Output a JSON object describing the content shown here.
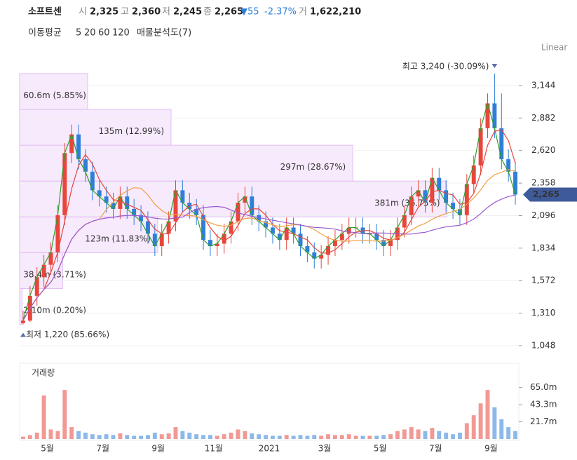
{
  "header": {
    "name": "소프트센",
    "items": [
      {
        "label": "시",
        "value": "2,325"
      },
      {
        "label": "고",
        "value": "2,360"
      },
      {
        "label": "저",
        "value": "2,245"
      },
      {
        "label": "종",
        "value": "2,265"
      }
    ],
    "change": "▼55",
    "change_pct": "-2.37%",
    "volume_label": "거",
    "volume_value": "1,622,210",
    "indicator_label": "이동평균",
    "profile_label": "매물분석도(7)",
    "scale_label": "Linear"
  },
  "chart_data": {
    "type": "candlestick",
    "categories": [
      null,
      null,
      null,
      null,
      "5월",
      null,
      null,
      null,
      null,
      null,
      null,
      null,
      "7월",
      null,
      null,
      null,
      null,
      null,
      null,
      null,
      "9월",
      null,
      null,
      null,
      null,
      null,
      null,
      null,
      "11월",
      null,
      null,
      null,
      null,
      null,
      null,
      null,
      "2021",
      null,
      null,
      null,
      null,
      null,
      null,
      null,
      "3월",
      null,
      null,
      null,
      null,
      null,
      null,
      null,
      "5월",
      null,
      null,
      null,
      null,
      null,
      null,
      null,
      "7월",
      null,
      null,
      null,
      null,
      null,
      null,
      null,
      "9월",
      null,
      null,
      null
    ],
    "open": [
      1230,
      1250,
      1450,
      1600,
      1700,
      1800,
      2100,
      2600,
      2750,
      2550,
      2450,
      2300,
      2250,
      2200,
      2150,
      2250,
      2150,
      2100,
      2050,
      1950,
      1850,
      1950,
      2050,
      2300,
      2200,
      2150,
      2100,
      1900,
      1850,
      1870,
      1950,
      2050,
      2200,
      2250,
      2100,
      2050,
      2000,
      1950,
      1900,
      2000,
      1950,
      1850,
      1800,
      1750,
      1780,
      1850,
      1900,
      1950,
      2000,
      2000,
      1950,
      1950,
      1900,
      1850,
      1900,
      2000,
      2100,
      2250,
      2300,
      2200,
      2400,
      2300,
      2200,
      2150,
      2100,
      2350,
      2500,
      2800,
      3000,
      2800,
      2550,
      2450
    ],
    "high": [
      1330,
      1530,
      1680,
      1780,
      1880,
      2180,
      2680,
      2830,
      2830,
      2630,
      2530,
      2380,
      2330,
      2280,
      2330,
      2330,
      2230,
      2180,
      2130,
      2030,
      2030,
      2130,
      2380,
      2380,
      2280,
      2230,
      2180,
      1980,
      1950,
      2030,
      2130,
      2280,
      2330,
      2330,
      2180,
      2130,
      2080,
      2030,
      2080,
      2080,
      2030,
      1930,
      1880,
      1860,
      1930,
      1980,
      2030,
      2080,
      2080,
      2080,
      2030,
      2030,
      1980,
      1980,
      2080,
      2180,
      2330,
      2380,
      2380,
      2480,
      2480,
      2380,
      2280,
      2230,
      2430,
      2580,
      2880,
      3080,
      3240,
      3080,
      2630,
      2530
    ],
    "low": [
      1220,
      1240,
      1370,
      1520,
      1620,
      1720,
      2020,
      2520,
      2470,
      2370,
      2220,
      2170,
      2120,
      2070,
      2070,
      2070,
      2020,
      1970,
      1870,
      1770,
      1770,
      1870,
      1970,
      2120,
      2070,
      2020,
      1820,
      1770,
      1770,
      1790,
      1870,
      1970,
      2120,
      2020,
      1970,
      1920,
      1870,
      1820,
      1820,
      1870,
      1770,
      1720,
      1670,
      1670,
      1700,
      1770,
      1820,
      1870,
      1920,
      1870,
      1870,
      1820,
      1770,
      1770,
      1820,
      1920,
      2020,
      2170,
      2120,
      2120,
      2220,
      2120,
      2070,
      2020,
      2020,
      2270,
      2420,
      2720,
      2720,
      2470,
      2370,
      2185
    ],
    "close": [
      1250,
      1450,
      1600,
      1700,
      1800,
      2100,
      2600,
      2750,
      2550,
      2450,
      2300,
      2250,
      2200,
      2150,
      2250,
      2150,
      2100,
      2050,
      1950,
      1850,
      1950,
      2050,
      2300,
      2200,
      2150,
      2100,
      1900,
      1850,
      1870,
      1950,
      2050,
      2200,
      2250,
      2100,
      2050,
      2000,
      1950,
      1900,
      2000,
      1950,
      1850,
      1800,
      1750,
      1780,
      1850,
      1900,
      1950,
      2000,
      2000,
      1950,
      1950,
      1900,
      1850,
      1900,
      2000,
      2100,
      2250,
      2300,
      2200,
      2400,
      2300,
      2200,
      2150,
      2100,
      2350,
      2500,
      2800,
      3000,
      2800,
      2550,
      2450,
      2265
    ],
    "up_color": "#e8453c",
    "down_color": "#2f7fd8",
    "ylim": [
      952,
      3268
    ],
    "yticks": [
      {
        "value": 1048,
        "label": "1,048"
      },
      {
        "value": 1310,
        "label": "1,310"
      },
      {
        "value": 1572,
        "label": "1,572"
      },
      {
        "value": 1834,
        "label": "1,834"
      },
      {
        "value": 2096,
        "label": "2,096"
      },
      {
        "value": 2358,
        "label": "2,358"
      },
      {
        "value": 2620,
        "label": "2,620"
      },
      {
        "value": 2882,
        "label": "2,882"
      },
      {
        "value": 3144,
        "label": "3,144"
      }
    ],
    "grid": true,
    "last_label": "2,265",
    "high_annotation": "최고 3,240 (-30.09%)",
    "low_annotation": "최저 1,220 (85.66%)",
    "moving_averages": [
      {
        "period": 5,
        "color": "#2ca02c"
      },
      {
        "period": 20,
        "color": "#e8453c"
      },
      {
        "period": 60,
        "color": "#f0a040"
      },
      {
        "period": 120,
        "color": "#9b59d0"
      }
    ],
    "profile": {
      "bins": [
        1220,
        1508.6,
        1797.1,
        2085.7,
        2374.3,
        2662.9,
        2951.4,
        3240
      ],
      "values": [
        2.1,
        38.4,
        123,
        381,
        297,
        135,
        60.6
      ],
      "value_labels": [
        "2.10m (0.20%)",
        "38.4m (3.71%)",
        "123m (11.83%)",
        "381m (36.75%)",
        "297m (28.67%)",
        "135m (12.99%)",
        "60.6m (5.85%)"
      ],
      "color": "#f3e3fb"
    },
    "volume": {
      "title": "거래량",
      "values": [
        3,
        5,
        8,
        55,
        12,
        10,
        62,
        15,
        10,
        8,
        6,
        5,
        6,
        5,
        7,
        5,
        4,
        4,
        5,
        8,
        6,
        7,
        15,
        10,
        8,
        6,
        5,
        5,
        4,
        6,
        8,
        12,
        10,
        7,
        6,
        5,
        4,
        4,
        5,
        4,
        5,
        4,
        5,
        4,
        6,
        5,
        5,
        6,
        4,
        4,
        4,
        4,
        5,
        6,
        10,
        12,
        15,
        12,
        10,
        14,
        10,
        8,
        6,
        8,
        20,
        30,
        45,
        62,
        40,
        25,
        15,
        10
      ],
      "ylim": [
        0,
        94
      ],
      "yticks": [
        {
          "value": 21.7,
          "label": "21.7m"
        },
        {
          "value": 43.3,
          "label": "43.3m"
        },
        {
          "value": 65.0,
          "label": "65.0m"
        }
      ]
    }
  }
}
